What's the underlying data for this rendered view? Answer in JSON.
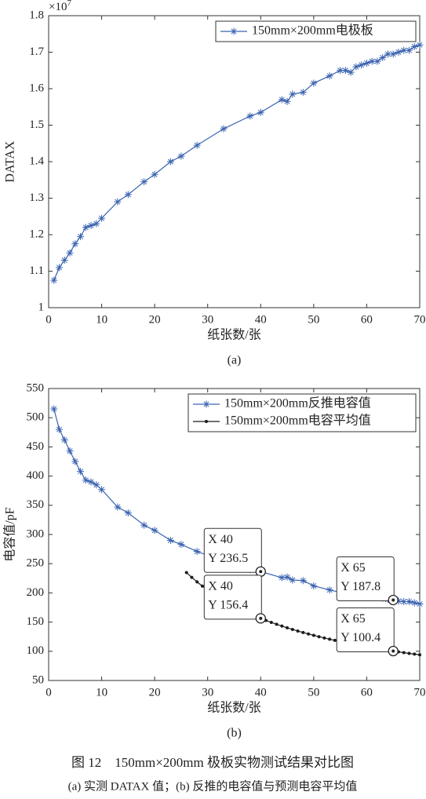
{
  "chart_data": [
    {
      "type": "line",
      "multiplier": {
        "base": "×10",
        "exponent": "7"
      },
      "xlabel": "纸张数/张",
      "ylabel": "DATAX",
      "panel_label": "(a)",
      "xlim": [
        0,
        70
      ],
      "xticks": [
        0,
        10,
        20,
        30,
        40,
        50,
        60,
        70
      ],
      "ylim": [
        1,
        1.8
      ],
      "yticks": [
        1,
        1.1,
        1.2,
        1.3,
        1.4,
        1.5,
        1.6,
        1.7,
        1.8
      ],
      "legend": "top-right",
      "series": [
        {
          "name": "150mm×200mm电极板",
          "color": "#3a63b0",
          "marker": "asterisk",
          "x": [
            1,
            2,
            3,
            4,
            5,
            6,
            7,
            8,
            9,
            10,
            13,
            15,
            18,
            20,
            23,
            25,
            28,
            33,
            38,
            40,
            44,
            45,
            46,
            48,
            50,
            53,
            55,
            56,
            57,
            58,
            59,
            60,
            61,
            62,
            63,
            64,
            65,
            66,
            67,
            68,
            69,
            70
          ],
          "values": [
            1.075,
            1.11,
            1.13,
            1.15,
            1.175,
            1.195,
            1.22,
            1.225,
            1.23,
            1.245,
            1.29,
            1.31,
            1.345,
            1.365,
            1.4,
            1.415,
            1.445,
            1.49,
            1.525,
            1.535,
            1.57,
            1.565,
            1.585,
            1.59,
            1.615,
            1.635,
            1.65,
            1.65,
            1.645,
            1.66,
            1.665,
            1.67,
            1.675,
            1.675,
            1.685,
            1.695,
            1.695,
            1.7,
            1.705,
            1.705,
            1.715,
            1.72
          ]
        }
      ]
    },
    {
      "type": "line",
      "xlabel": "纸张数/张",
      "ylabel": "电容值/pF",
      "panel_label": "(b)",
      "xlim": [
        0,
        70
      ],
      "xticks": [
        0,
        10,
        20,
        30,
        40,
        50,
        60,
        70
      ],
      "ylim": [
        50,
        550
      ],
      "yticks": [
        50,
        100,
        150,
        200,
        250,
        300,
        350,
        400,
        450,
        500,
        550
      ],
      "legend": "top-right",
      "series": [
        {
          "name": "150mm×200mm反推电容值",
          "color": "#3a63b0",
          "marker": "asterisk",
          "x": [
            1,
            2,
            3,
            4,
            5,
            6,
            7,
            8,
            9,
            10,
            13,
            15,
            18,
            20,
            23,
            25,
            28,
            33,
            38,
            40,
            44,
            45,
            46,
            48,
            50,
            53,
            55,
            56,
            57,
            58,
            59,
            60,
            61,
            62,
            63,
            64,
            65,
            66,
            67,
            68,
            69,
            70
          ],
          "values": [
            515,
            480,
            462,
            443,
            425,
            408,
            393,
            390,
            385,
            377,
            347,
            337,
            316,
            307,
            290,
            283,
            271,
            254,
            240,
            236.5,
            226,
            227,
            222,
            221,
            212,
            205,
            201,
            200,
            202,
            197,
            195,
            194,
            193,
            193,
            191,
            189,
            187.8,
            186,
            185,
            185,
            183,
            181
          ]
        },
        {
          "name": "150mm×200mm电容平均值",
          "color": "#1a1a1a",
          "marker": "dot",
          "x": [
            26,
            27,
            28,
            29,
            30,
            31,
            32,
            33,
            34,
            35,
            36,
            37,
            38,
            39,
            40,
            41,
            42,
            43,
            44,
            45,
            46,
            47,
            48,
            49,
            50,
            51,
            52,
            53,
            54,
            55,
            56,
            57,
            58,
            59,
            60,
            61,
            62,
            63,
            64,
            65,
            66,
            67,
            68,
            69,
            70
          ],
          "values": [
            234.8,
            226.5,
            218.8,
            211.6,
            204.9,
            198.7,
            192.8,
            187.3,
            182.1,
            177.2,
            172.6,
            168.2,
            164.1,
            160.1,
            156.4,
            152.8,
            149.5,
            146.2,
            143.2,
            140.2,
            137.4,
            134.7,
            132.1,
            129.7,
            127.3,
            125.0,
            122.8,
            120.7,
            118.7,
            116.7,
            114.8,
            113.0,
            111.2,
            109.5,
            107.9,
            106.3,
            104.7,
            103.2,
            101.8,
            100.4,
            99.0,
            97.7,
            96.4,
            95.2,
            94.0
          ]
        }
      ],
      "annotations": [
        {
          "x": 40,
          "y": 236.5,
          "lines": [
            "X 40",
            "Y 236.5"
          ]
        },
        {
          "x": 40,
          "y": 156.4,
          "lines": [
            "X 40",
            "Y 156.4"
          ]
        },
        {
          "x": 65,
          "y": 187.8,
          "lines": [
            "X 65",
            "Y 187.8"
          ]
        },
        {
          "x": 65,
          "y": 100.4,
          "lines": [
            "X 65",
            "Y 100.4"
          ]
        }
      ]
    }
  ],
  "caption": {
    "title": "图 12　150mm×200mm 极板实物测试结果对比图",
    "subtitle": "(a) 实测 DATAX 值；(b) 反推的电容值与预测电容平均值"
  }
}
